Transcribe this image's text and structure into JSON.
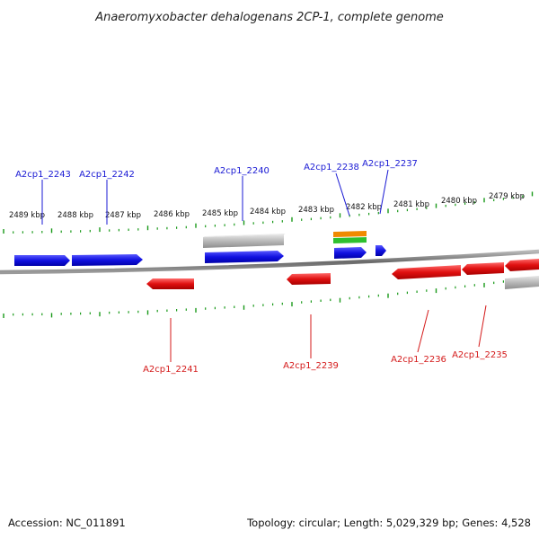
{
  "title": "Anaeromyxobacter dehalogenans 2CP-1, complete genome",
  "footer": {
    "accession": "Accession: NC_011891",
    "info": "Topology: circular; Length: 5,029,329 bp; Genes: 4,528"
  },
  "colors": {
    "forward_gene": "#1010e0",
    "reverse_gene": "#e01010",
    "other_feature": "#b8b8b8",
    "backbone": "#7a7a7a",
    "ticks": "#1a9a1a",
    "feature_orange": "#f08a00",
    "feature_green": "#2ec02e"
  },
  "coordinate_labels": [
    "2489 kbp",
    "2488 kbp",
    "2487 kbp",
    "2486 kbp",
    "2485 kbp",
    "2484 kbp",
    "2483 kbp",
    "2482 kbp",
    "2481 kbp",
    "2480 kbp",
    "2479 kbp"
  ],
  "forward_gene_labels": [
    "A2cp1_2243",
    "A2cp1_2242",
    "A2cp1_2240",
    "A2cp1_2238",
    "A2cp1_2237"
  ],
  "reverse_gene_labels": [
    "A2cp1_2241",
    "A2cp1_2239",
    "A2cp1_2236",
    "A2cp1_2235"
  ]
}
